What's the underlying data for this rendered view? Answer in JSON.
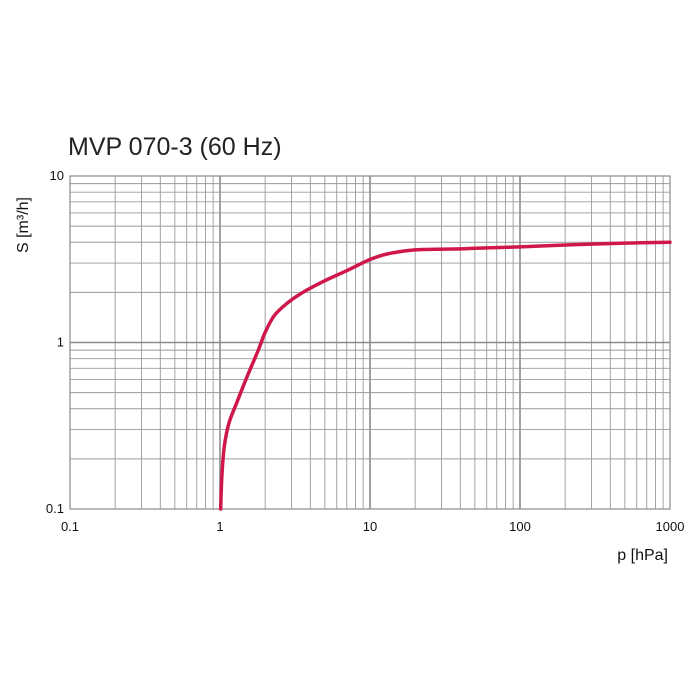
{
  "chart_data": {
    "type": "line",
    "title": "MVP 070-3 (60 Hz)",
    "xlabel": "p  [hPa]",
    "ylabel": "S  [m³/h]",
    "xscale": "log",
    "yscale": "log",
    "xlim": [
      0.1,
      1000
    ],
    "ylim": [
      0.1,
      10
    ],
    "x_ticks": [
      {
        "value": 0.1,
        "label": "0.1"
      },
      {
        "value": 1,
        "label": "1"
      },
      {
        "value": 10,
        "label": "10"
      },
      {
        "value": 100,
        "label": "100"
      },
      {
        "value": 1000,
        "label": "1000"
      }
    ],
    "y_ticks": [
      {
        "value": 0.1,
        "label": "0.1"
      },
      {
        "value": 1,
        "label": "1"
      },
      {
        "value": 10,
        "label": "10"
      }
    ],
    "grid": true,
    "series": [
      {
        "name": "MVP 070-3 (60 Hz)",
        "color": "#d0174a",
        "x": [
          1.01,
          1.03,
          1.07,
          1.15,
          1.3,
          1.5,
          1.8,
          2.0,
          2.3,
          2.8,
          3.5,
          5.0,
          7.0,
          10.0,
          13.0,
          20.0,
          40.0,
          60.0,
          100.0,
          200.0,
          500.0,
          1000.0
        ],
        "y": [
          0.1,
          0.16,
          0.24,
          0.33,
          0.44,
          0.61,
          0.9,
          1.15,
          1.45,
          1.72,
          1.98,
          2.35,
          2.7,
          3.15,
          3.4,
          3.6,
          3.65,
          3.7,
          3.75,
          3.85,
          3.95,
          4.0
        ]
      }
    ]
  }
}
